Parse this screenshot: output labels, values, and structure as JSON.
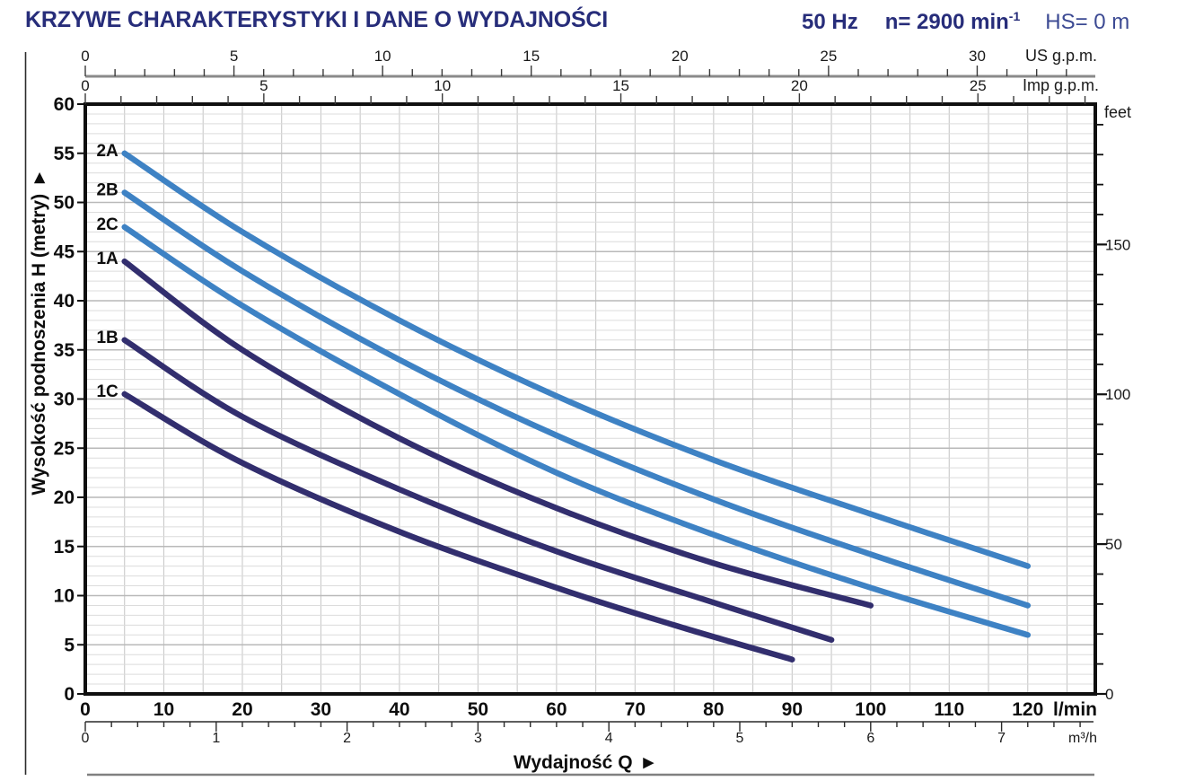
{
  "header": {
    "title": "KRZYWE CHARAKTERYSTYKI I DANE O WYDAJNOŚCI",
    "frequency": "50 Hz",
    "speed": "n= 2900 min",
    "speed_sup": "-1",
    "suction": "HS= 0 m"
  },
  "chart_data": {
    "type": "line",
    "title": "KRZYWE CHARAKTERYSTYKI I DANE O WYDAJNOŚCI",
    "xlabel": "Wydajność Q",
    "ylabel": "Wysokość podnoszenia H  (metry)",
    "arrow_glyph": "▶",
    "grid": "on",
    "x_primary": {
      "unit": "l/min",
      "min": 0,
      "max": 128.6,
      "label_step": 10,
      "label_max": 120,
      "grid_step": 5
    },
    "x_secondary_m3h": {
      "unit": "m³/h",
      "factor_lmin": 16.6667,
      "label_max": 7,
      "minor_step": 0.2
    },
    "x_top_us": {
      "unit": "US g.p.m.",
      "factor_lmin": 3.7854,
      "label_step": 5,
      "label_max": 30,
      "minor_step": 1
    },
    "x_top_imp": {
      "unit": "Imp g.p.m.",
      "factor_lmin": 4.5461,
      "label_step": 5,
      "label_max": 25,
      "minor_step": 1
    },
    "y_left": {
      "unit": "metry",
      "min": 0,
      "max": 60,
      "label_step": 5,
      "grid_minor": 1,
      "grid_major": 5
    },
    "y_right_feet": {
      "unit": "feet",
      "metres_per_foot": 0.3048,
      "minor_step_ft": 10,
      "labels": [
        0,
        50,
        100,
        150
      ]
    },
    "series": [
      {
        "name": "2A",
        "color": "#3e82c4",
        "points": [
          [
            5,
            55
          ],
          [
            20,
            47
          ],
          [
            40,
            38
          ],
          [
            60,
            30.3
          ],
          [
            80,
            23.8
          ],
          [
            100,
            18.3
          ],
          [
            120,
            13
          ]
        ]
      },
      {
        "name": "2B",
        "color": "#3e82c4",
        "points": [
          [
            5,
            51
          ],
          [
            20,
            43
          ],
          [
            40,
            34
          ],
          [
            60,
            26.3
          ],
          [
            80,
            19.8
          ],
          [
            100,
            14.2
          ],
          [
            120,
            9
          ]
        ]
      },
      {
        "name": "2C",
        "color": "#3e82c4",
        "points": [
          [
            5,
            47.5
          ],
          [
            20,
            39.5
          ],
          [
            40,
            30.5
          ],
          [
            60,
            22.5
          ],
          [
            80,
            16.2
          ],
          [
            100,
            10.8
          ],
          [
            120,
            6
          ]
        ]
      },
      {
        "name": "1A",
        "color": "#322e6e",
        "points": [
          [
            5,
            44
          ],
          [
            20,
            35
          ],
          [
            40,
            26
          ],
          [
            60,
            18.9
          ],
          [
            80,
            13.3
          ],
          [
            100,
            9
          ]
        ]
      },
      {
        "name": "1B",
        "color": "#322e6e",
        "points": [
          [
            5,
            36
          ],
          [
            20,
            28.2
          ],
          [
            40,
            20.8
          ],
          [
            60,
            14.5
          ],
          [
            80,
            9.3
          ],
          [
            95,
            5.5
          ]
        ]
      },
      {
        "name": "1C",
        "color": "#322e6e",
        "points": [
          [
            5,
            30.5
          ],
          [
            20,
            23.5
          ],
          [
            40,
            16.5
          ],
          [
            60,
            10.8
          ],
          [
            75,
            7
          ],
          [
            90,
            3.5
          ]
        ]
      }
    ]
  }
}
